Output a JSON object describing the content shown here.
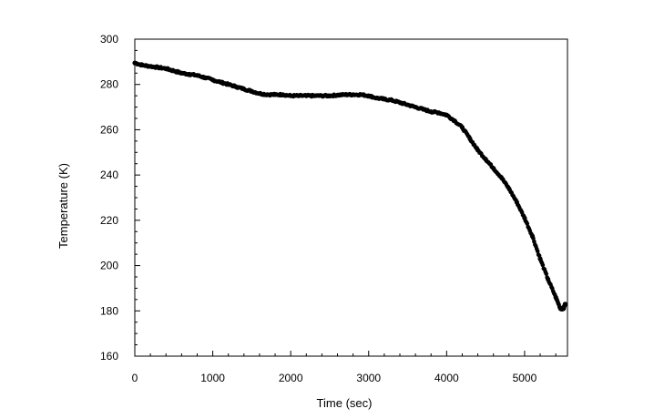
{
  "chart_data": {
    "type": "scatter",
    "title": "",
    "xlabel": "Time (sec)",
    "ylabel": "Temperature (K)",
    "xlim": [
      0,
      5550
    ],
    "ylim": [
      160,
      300
    ],
    "x_ticks": [
      0,
      1000,
      2000,
      3000,
      4000,
      5000
    ],
    "y_ticks": [
      160,
      180,
      200,
      220,
      240,
      260,
      280,
      300
    ],
    "x_tick_labels": [
      "0",
      "1000",
      "2000",
      "3000",
      "4000",
      "5000"
    ],
    "y_tick_labels": [
      "160",
      "180",
      "200",
      "220",
      "240",
      "260",
      "280",
      "300"
    ],
    "grid": false,
    "legend": "none",
    "marker_color": "#000000",
    "series": [
      {
        "x": [
          0,
          100,
          200,
          300,
          400,
          500,
          600,
          700,
          800,
          900,
          1000,
          1100,
          1200,
          1300,
          1400,
          1500,
          1600,
          1700,
          1800,
          1900,
          2000,
          2100,
          2200,
          2300,
          2400,
          2500,
          2600,
          2700,
          2800,
          2900,
          3000,
          3100,
          3200,
          3300,
          3400,
          3500,
          3600,
          3700,
          3800,
          3900,
          4000,
          4100,
          4200,
          4300,
          4400,
          4500,
          4600,
          4700,
          4800,
          4900,
          5000,
          5100,
          5200,
          5300,
          5400,
          5460,
          5500,
          5520
        ],
        "y": [
          289.5,
          288.5,
          288,
          287.5,
          287,
          286,
          285,
          284.5,
          284,
          283,
          282,
          281,
          280,
          279,
          278,
          277,
          276,
          275.5,
          275.5,
          275.5,
          275,
          275,
          275,
          275,
          275,
          275,
          275.3,
          275.5,
          275.5,
          275.5,
          275,
          274,
          273.5,
          273,
          272,
          271,
          270,
          269,
          268,
          267.5,
          266.5,
          264,
          261,
          256,
          251,
          247,
          243,
          239,
          234,
          228,
          221,
          213,
          203,
          194,
          186,
          181,
          181,
          183
        ]
      }
    ]
  }
}
